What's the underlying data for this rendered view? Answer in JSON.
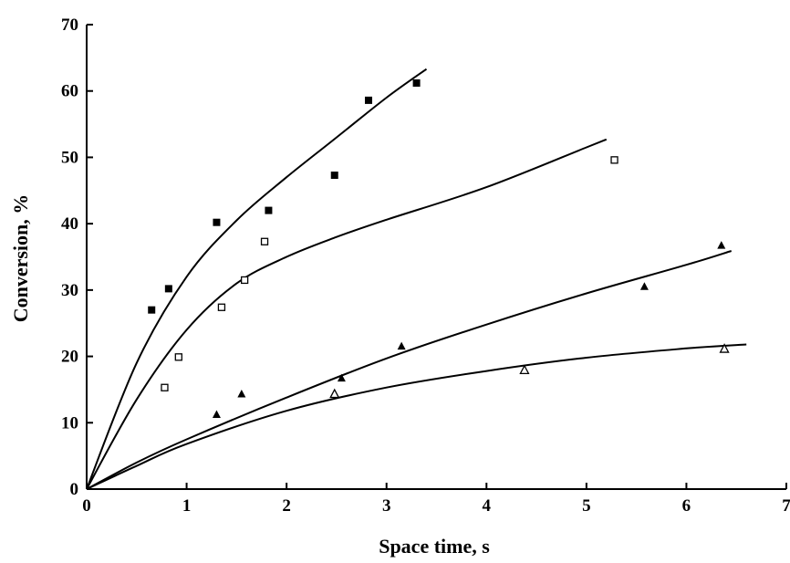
{
  "chart_data": {
    "type": "scatter",
    "xlabel": "Space time, s",
    "ylabel": "Conversion, %",
    "xlim": [
      0,
      7
    ],
    "ylim": [
      0,
      70
    ],
    "xticks": [
      "0",
      "1",
      "2",
      "3",
      "4",
      "5",
      "6",
      "7"
    ],
    "yticks": [
      "0",
      "10",
      "20",
      "30",
      "40",
      "50",
      "60",
      "70"
    ],
    "grid": false,
    "legend": "none",
    "series": [
      {
        "marker": "filled-square",
        "color": "#000000",
        "points": [
          [
            0.65,
            27
          ],
          [
            0.82,
            30.2
          ],
          [
            1.3,
            40.2
          ],
          [
            1.82,
            42
          ],
          [
            2.48,
            47.3
          ],
          [
            2.82,
            58.6
          ],
          [
            3.3,
            61.2
          ]
        ],
        "fit": [
          [
            0,
            0
          ],
          [
            0.5,
            19
          ],
          [
            1,
            32
          ],
          [
            1.5,
            40.5
          ],
          [
            2,
            47
          ],
          [
            2.5,
            53
          ],
          [
            3,
            59
          ],
          [
            3.4,
            63.3
          ]
        ]
      },
      {
        "marker": "open-square",
        "color": "#000000",
        "points": [
          [
            0.78,
            15.3
          ],
          [
            0.92,
            19.9
          ],
          [
            1.35,
            27.4
          ],
          [
            1.58,
            31.5
          ],
          [
            1.78,
            37.3
          ],
          [
            5.28,
            49.6
          ]
        ],
        "fit": [
          [
            0,
            0
          ],
          [
            0.5,
            13.5
          ],
          [
            1,
            24
          ],
          [
            1.5,
            31
          ],
          [
            2,
            35
          ],
          [
            2.5,
            38
          ],
          [
            3,
            40.6
          ],
          [
            4,
            45.5
          ],
          [
            5,
            51.5
          ],
          [
            5.2,
            52.7
          ]
        ]
      },
      {
        "marker": "filled-triangle",
        "color": "#000000",
        "points": [
          [
            1.3,
            11.2
          ],
          [
            1.55,
            14.3
          ],
          [
            2.55,
            16.7
          ],
          [
            3.15,
            21.5
          ],
          [
            5.58,
            30.5
          ],
          [
            6.35,
            36.7
          ]
        ],
        "fit": [
          [
            0,
            0
          ],
          [
            0.5,
            4
          ],
          [
            1,
            7.5
          ],
          [
            2,
            13.8
          ],
          [
            3,
            19.7
          ],
          [
            4,
            24.8
          ],
          [
            5,
            29.5
          ],
          [
            6,
            33.8
          ],
          [
            6.45,
            35.9
          ]
        ]
      },
      {
        "marker": "open-triangle",
        "color": "#000000",
        "points": [
          [
            2.48,
            14.3
          ],
          [
            4.38,
            17.9
          ],
          [
            6.38,
            21.1
          ]
        ],
        "fit": [
          [
            0,
            0
          ],
          [
            0.5,
            3.5
          ],
          [
            1,
            6.8
          ],
          [
            2,
            11.8
          ],
          [
            3,
            15.3
          ],
          [
            4,
            17.8
          ],
          [
            5,
            19.8
          ],
          [
            6,
            21.2
          ],
          [
            6.6,
            21.8
          ]
        ]
      }
    ]
  }
}
